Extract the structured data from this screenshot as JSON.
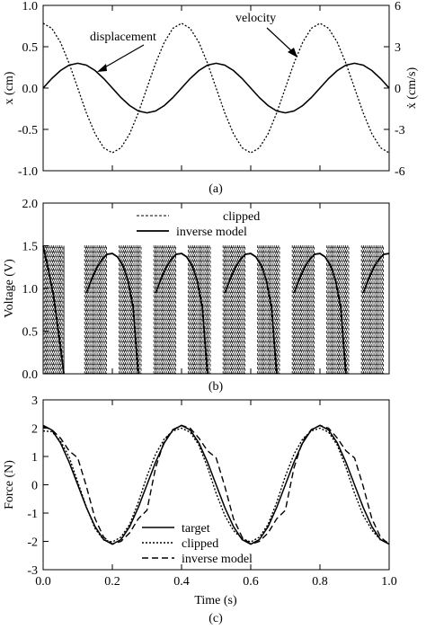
{
  "figure": {
    "panels": [
      {
        "caption": "(a)",
        "ylabel": "x (cm)",
        "y2label": "ẋ (cm/s)",
        "annotations": [
          "displacement",
          "velocity"
        ]
      },
      {
        "caption": "(b)",
        "ylabel": "Voltage (V)",
        "legend": [
          "clipped",
          "inverse model"
        ]
      },
      {
        "caption": "(c)",
        "ylabel": "Force (N)",
        "xlabel": "Time (s)",
        "legend": [
          "target",
          "clipped",
          "inverse model"
        ]
      }
    ]
  },
  "chart_data": [
    {
      "type": "line",
      "title": "",
      "xlabel": "",
      "ylabel": "x (cm)",
      "y2label": "ẋ (cm/s)",
      "xlim": [
        0,
        1.0
      ],
      "ylim": [
        -1.0,
        1.0
      ],
      "y2lim": [
        -6,
        6
      ],
      "yticks": [
        "1.0",
        "0.5",
        "0.0",
        "-0.5",
        "-1.0"
      ],
      "y2ticks": [
        "6",
        "3",
        "0",
        "-3",
        "-6"
      ],
      "annotations": [
        "displacement",
        "velocity"
      ],
      "series": [
        {
          "name": "displacement",
          "axis": "left",
          "style": "solid",
          "x": [
            0,
            0.025,
            0.05,
            0.075,
            0.1,
            0.125,
            0.15,
            0.175,
            0.2,
            0.225,
            0.25,
            0.275,
            0.3,
            0.325,
            0.35,
            0.375,
            0.4,
            0.425,
            0.45,
            0.475,
            0.5,
            0.525,
            0.55,
            0.575,
            0.6,
            0.625,
            0.65,
            0.675,
            0.7,
            0.725,
            0.75,
            0.775,
            0.8,
            0.825,
            0.85,
            0.875,
            0.9,
            0.925,
            0.95,
            0.975,
            1.0
          ],
          "y": [
            0.0,
            0.115,
            0.212,
            0.277,
            0.3,
            0.277,
            0.212,
            0.115,
            0.0,
            -0.115,
            -0.212,
            -0.277,
            -0.3,
            -0.277,
            -0.212,
            -0.115,
            0.0,
            0.115,
            0.212,
            0.277,
            0.3,
            0.277,
            0.212,
            0.115,
            0.0,
            -0.115,
            -0.212,
            -0.277,
            -0.3,
            -0.277,
            -0.212,
            -0.115,
            0.0,
            0.115,
            0.212,
            0.277,
            0.3,
            0.277,
            0.212,
            0.115,
            0.0
          ]
        },
        {
          "name": "velocity",
          "axis": "right",
          "style": "dotted",
          "x": [
            0,
            0.025,
            0.05,
            0.075,
            0.1,
            0.125,
            0.15,
            0.175,
            0.2,
            0.225,
            0.25,
            0.275,
            0.3,
            0.325,
            0.35,
            0.375,
            0.4,
            0.425,
            0.45,
            0.475,
            0.5,
            0.525,
            0.55,
            0.575,
            0.6,
            0.625,
            0.65,
            0.675,
            0.7,
            0.725,
            0.75,
            0.775,
            0.8,
            0.825,
            0.85,
            0.875,
            0.9,
            0.925,
            0.95,
            0.975,
            1.0
          ],
          "y": [
            4.7,
            4.34,
            3.32,
            1.8,
            0.0,
            -1.8,
            -3.32,
            -4.34,
            -4.7,
            -4.34,
            -3.32,
            -1.8,
            0.0,
            1.8,
            3.32,
            4.34,
            4.7,
            4.34,
            3.32,
            1.8,
            0.0,
            -1.8,
            -3.32,
            -4.34,
            -4.7,
            -4.34,
            -3.32,
            -1.8,
            0.0,
            1.8,
            3.32,
            4.34,
            4.7,
            4.34,
            3.32,
            1.8,
            0.0,
            -1.8,
            -3.32,
            -4.34,
            -4.7
          ]
        }
      ]
    },
    {
      "type": "line",
      "title": "",
      "xlabel": "",
      "ylabel": "Voltage (V)",
      "xlim": [
        0,
        1.0
      ],
      "ylim": [
        0.0,
        2.0
      ],
      "yticks": [
        "2.0",
        "1.5",
        "1.0",
        "0.5",
        "0.0"
      ],
      "legend": [
        "clipped",
        "inverse model"
      ],
      "legend_position": "top-center",
      "series": [
        {
          "name": "clipped",
          "style": "dashed",
          "pwm_high": 1.5,
          "pwm_low": 0.0,
          "active_intervals": [
            [
              0.0,
              0.06
            ],
            [
              0.12,
              0.185
            ],
            [
              0.22,
              0.285
            ],
            [
              0.32,
              0.385
            ],
            [
              0.42,
              0.485
            ],
            [
              0.52,
              0.585
            ],
            [
              0.62,
              0.685
            ],
            [
              0.72,
              0.785
            ],
            [
              0.82,
              0.885
            ],
            [
              0.92,
              0.985
            ]
          ],
          "pulse_period": 0.006
        },
        {
          "name": "inverse model",
          "style": "solid",
          "segments": [
            {
              "x": [
                0.0,
                0.015,
                0.03,
                0.045,
                0.06
              ],
              "y": [
                1.5,
                1.22,
                0.92,
                0.47,
                0.0
              ]
            },
            {
              "x": [
                0.125,
                0.14,
                0.155,
                0.17,
                0.185,
                0.2,
                0.215,
                0.23,
                0.245,
                0.26,
                0.275
              ],
              "y": [
                0.95,
                1.1,
                1.24,
                1.34,
                1.4,
                1.41,
                1.37,
                1.27,
                1.1,
                0.78,
                0.0
              ]
            },
            {
              "x": [
                0.325,
                0.34,
                0.355,
                0.37,
                0.385,
                0.4,
                0.415,
                0.43,
                0.445,
                0.46,
                0.475
              ],
              "y": [
                0.95,
                1.1,
                1.24,
                1.34,
                1.4,
                1.41,
                1.37,
                1.27,
                1.1,
                0.78,
                0.0
              ]
            },
            {
              "x": [
                0.525,
                0.54,
                0.555,
                0.57,
                0.585,
                0.6,
                0.615,
                0.63,
                0.645,
                0.66,
                0.675
              ],
              "y": [
                0.95,
                1.1,
                1.24,
                1.34,
                1.4,
                1.41,
                1.37,
                1.27,
                1.1,
                0.78,
                0.0
              ]
            },
            {
              "x": [
                0.725,
                0.74,
                0.755,
                0.77,
                0.785,
                0.8,
                0.815,
                0.83,
                0.845,
                0.86,
                0.875
              ],
              "y": [
                0.95,
                1.1,
                1.24,
                1.34,
                1.4,
                1.41,
                1.37,
                1.27,
                1.1,
                0.78,
                0.0
              ]
            },
            {
              "x": [
                0.925,
                0.94,
                0.955,
                0.97,
                0.985,
                1.0
              ],
              "y": [
                0.95,
                1.1,
                1.24,
                1.34,
                1.4,
                1.41
              ]
            }
          ]
        }
      ]
    },
    {
      "type": "line",
      "title": "",
      "xlabel": "Time (s)",
      "ylabel": "Force (N)",
      "xlim": [
        0,
        1.0
      ],
      "ylim": [
        -3,
        3
      ],
      "xticks": [
        "0.0",
        "0.2",
        "0.4",
        "0.6",
        "0.8",
        "1.0"
      ],
      "yticks": [
        "3",
        "2",
        "1",
        "0",
        "-1",
        "-2",
        "-3"
      ],
      "legend": [
        "target",
        "clipped",
        "inverse model"
      ],
      "legend_position": "bottom-center",
      "series": [
        {
          "name": "target",
          "style": "solid",
          "x": [
            0,
            0.025,
            0.05,
            0.075,
            0.1,
            0.125,
            0.15,
            0.175,
            0.2,
            0.225,
            0.25,
            0.275,
            0.3,
            0.325,
            0.35,
            0.375,
            0.4,
            0.425,
            0.45,
            0.475,
            0.5,
            0.525,
            0.55,
            0.575,
            0.6,
            0.625,
            0.65,
            0.675,
            0.7,
            0.725,
            0.75,
            0.775,
            0.8,
            0.825,
            0.85,
            0.875,
            0.9,
            0.925,
            0.95,
            0.975,
            1.0
          ],
          "y": [
            2.1,
            1.94,
            1.48,
            0.8,
            0.0,
            -0.8,
            -1.48,
            -1.94,
            -2.1,
            -1.94,
            -1.48,
            -0.8,
            0.0,
            0.8,
            1.48,
            1.94,
            2.1,
            1.94,
            1.48,
            0.8,
            0.0,
            -0.8,
            -1.48,
            -1.94,
            -2.1,
            -1.94,
            -1.48,
            -0.8,
            0.0,
            0.8,
            1.48,
            1.94,
            2.1,
            1.94,
            1.48,
            0.8,
            0.0,
            -0.8,
            -1.48,
            -1.94,
            -2.1
          ]
        },
        {
          "name": "clipped",
          "style": "dotted",
          "x": [
            0,
            0.025,
            0.05,
            0.075,
            0.1,
            0.125,
            0.15,
            0.175,
            0.2,
            0.225,
            0.25,
            0.275,
            0.3,
            0.325,
            0.35,
            0.375,
            0.4,
            0.425,
            0.45,
            0.475,
            0.5,
            0.525,
            0.55,
            0.575,
            0.6,
            0.625,
            0.65,
            0.675,
            0.7,
            0.725,
            0.75,
            0.775,
            0.8,
            0.825,
            0.85,
            0.875,
            0.9,
            0.925,
            0.95,
            0.975,
            1.0
          ],
          "y": [
            1.9,
            1.88,
            1.55,
            0.98,
            0.1,
            -0.78,
            -1.55,
            -1.95,
            -2.02,
            -1.85,
            -1.4,
            -0.62,
            0.3,
            1.08,
            1.62,
            1.9,
            2.0,
            1.86,
            1.4,
            0.62,
            -0.3,
            -1.08,
            -1.62,
            -1.9,
            -2.02,
            -1.85,
            -1.4,
            -0.62,
            0.3,
            1.08,
            1.62,
            1.9,
            2.0,
            1.86,
            1.4,
            0.62,
            -0.3,
            -1.08,
            -1.6,
            -1.95,
            -2.05
          ]
        },
        {
          "name": "inverse model",
          "style": "dashed",
          "x": [
            0,
            0.025,
            0.05,
            0.075,
            0.1,
            0.125,
            0.15,
            0.175,
            0.2,
            0.225,
            0.25,
            0.275,
            0.3,
            0.325,
            0.35,
            0.375,
            0.4,
            0.425,
            0.45,
            0.475,
            0.5,
            0.525,
            0.55,
            0.575,
            0.6,
            0.625,
            0.65,
            0.675,
            0.7,
            0.725,
            0.75,
            0.775,
            0.8,
            0.825,
            0.85,
            0.875,
            0.9,
            0.925,
            0.95,
            0.975,
            1.0
          ],
          "y": [
            2.05,
            1.95,
            1.65,
            1.2,
            0.95,
            -0.05,
            -1.2,
            -1.85,
            -2.1,
            -2.0,
            -1.7,
            -1.2,
            -0.9,
            0.6,
            1.55,
            1.95,
            2.1,
            2.0,
            1.65,
            1.2,
            0.95,
            -0.05,
            -1.2,
            -1.85,
            -2.1,
            -2.0,
            -1.7,
            -1.2,
            -0.9,
            0.6,
            1.55,
            1.95,
            2.1,
            2.0,
            1.65,
            1.2,
            0.95,
            -0.05,
            -1.2,
            -1.85,
            -2.1
          ]
        }
      ]
    }
  ]
}
